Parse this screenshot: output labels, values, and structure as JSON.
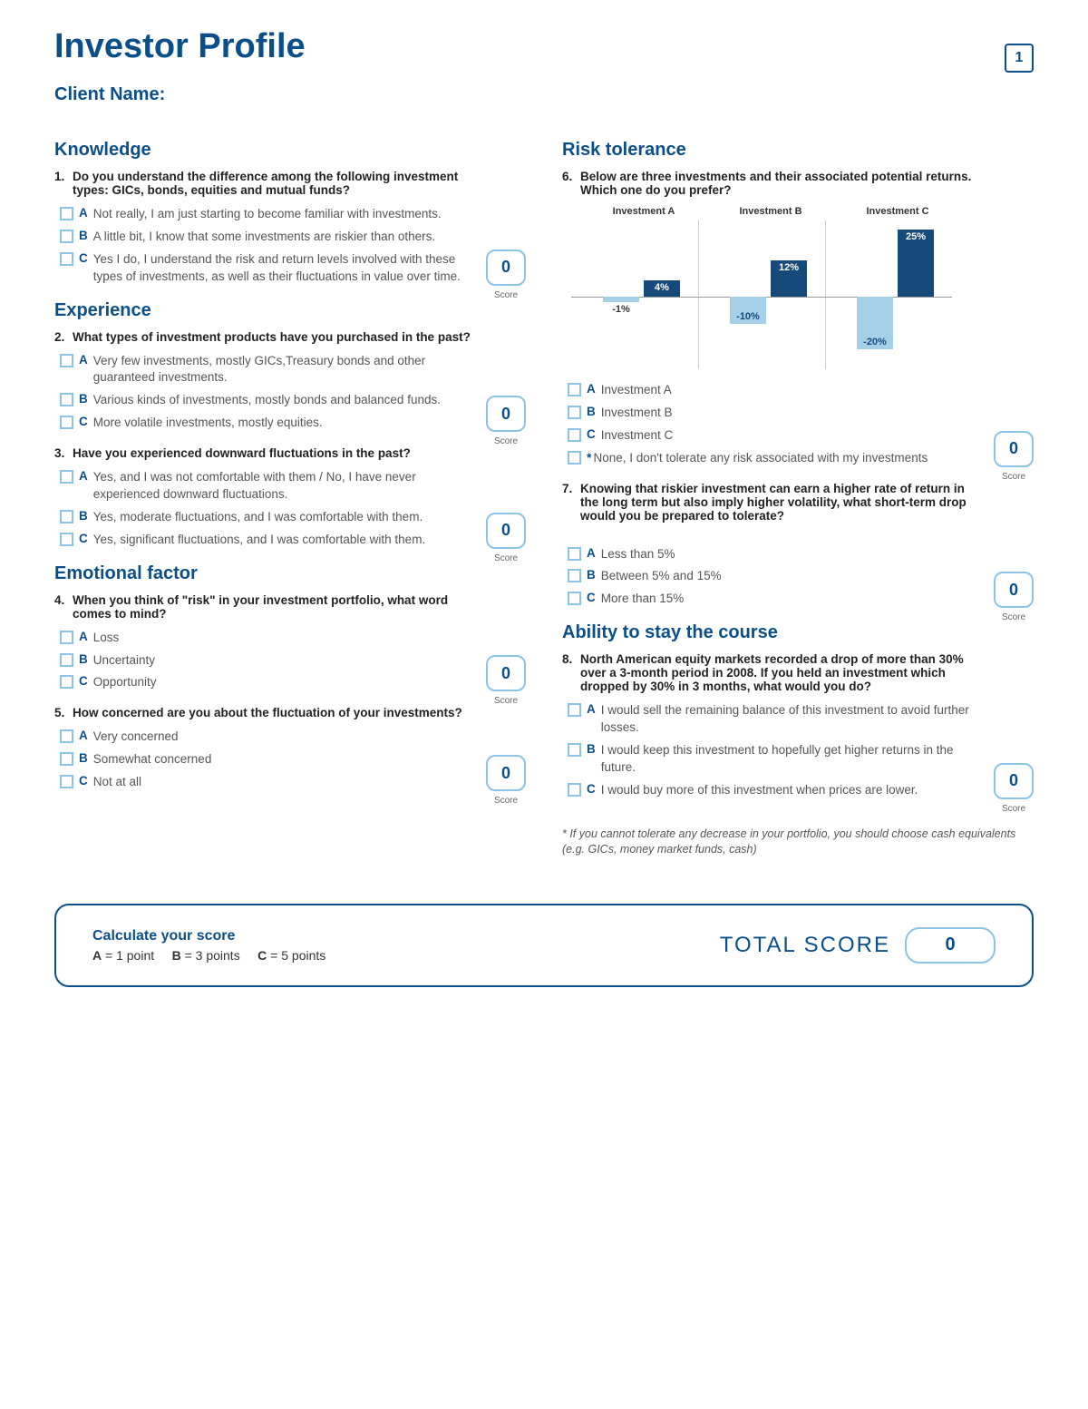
{
  "page": {
    "title": "Investor Profile",
    "clientNameLabel": "Client Name:",
    "pageNumber": "1"
  },
  "scoreLabel": "Score",
  "colors": {
    "primary": "#0b4f8a",
    "lightBlue": "#8cc3e6",
    "barDark": "#154a7b",
    "barLight": "#a6d0e8"
  },
  "sections": {
    "knowledge": {
      "title": "Knowledge"
    },
    "experience": {
      "title": "Experience"
    },
    "emotional": {
      "title": "Emotional factor"
    },
    "risk": {
      "title": "Risk tolerance"
    },
    "course": {
      "title": "Ability to stay the course"
    }
  },
  "q1": {
    "num": "1.",
    "text": "Do you understand the difference among the following investment types: GICs, bonds, equities and mutual funds?",
    "A": "Not really, I am just starting to become familiar with investments.",
    "B": "A little bit, I know that some investments are riskier than others.",
    "C": "Yes I do, I understand the risk and return levels involved with these types of investments, as well as their fluctuations in value over time.",
    "score": "0"
  },
  "q2": {
    "num": "2.",
    "text": "What types of investment products have you purchased in the past?",
    "A": "Very few investments, mostly GICs,Treasury bonds and other guaranteed investments.",
    "B": "Various kinds of investments, mostly bonds and balanced funds.",
    "C": "More volatile investments, mostly equities.",
    "score": "0"
  },
  "q3": {
    "num": "3.",
    "text": "Have you experienced downward fluctuations in the past?",
    "A": "Yes, and I was not comfortable with them / No, I have never experienced downward fluctuations.",
    "B": "Yes, moderate fluctuations, and I was comfortable with them.",
    "C": "Yes, significant fluctuations, and I was comfortable with them.",
    "score": "0"
  },
  "q4": {
    "num": "4.",
    "text": "When you think of \"risk\" in your investment portfolio, what word comes to mind?",
    "A": "Loss",
    "B": "Uncertainty",
    "C": "Opportunity",
    "score": "0"
  },
  "q5": {
    "num": "5.",
    "text": "How concerned are you about the fluctuation of your investments?",
    "A": "Very concerned",
    "B": "Somewhat concerned",
    "C": "Not at all",
    "score": "0"
  },
  "q6": {
    "num": "6.",
    "text": "Below are three investments and their associated potential returns. Which one do you prefer?",
    "A": "Investment A",
    "B": "Investment B",
    "C": "Investment C",
    "none": "None, I don't tolerate any risk associated with my investments",
    "score": "0",
    "chart": {
      "labels": {
        "a": "Investment A",
        "b": "Investment B",
        "c": "Investment C"
      },
      "columns": [
        {
          "posLabel": "4%",
          "posHeight": 18,
          "negLabel": "-1%",
          "negHeight": 6
        },
        {
          "posLabel": "12%",
          "posHeight": 40,
          "negLabel": "-10%",
          "negHeight": 30
        },
        {
          "posLabel": "25%",
          "posHeight": 74,
          "negLabel": "-20%",
          "negHeight": 58
        }
      ],
      "colLeft": [
        30,
        170,
        310
      ],
      "vlines": [
        140,
        280
      ],
      "barDark": "#154a7b",
      "barLight": "#a6d0e8"
    }
  },
  "q7": {
    "num": "7.",
    "text": "Knowing that riskier investment can earn a higher rate of return in the long term but also imply higher volatility, what short-term drop would you be prepared to tolerate?",
    "A": "Less than 5%",
    "B": "Between 5% and 15%",
    "C": "More than 15%",
    "score": "0"
  },
  "q8": {
    "num": "8.",
    "text": "North American equity markets recorded a drop of more than 30% over a 3-month period in 2008. If you held an investment which dropped by 30% in 3 months, what would you do?",
    "A": "I would sell the remaining balance of this investment to avoid further losses.",
    "B": "I would keep this investment to hopefully get higher returns in the future.",
    "C": "I would buy more of this investment when prices are lower.",
    "score": "0"
  },
  "footnote": "* If you cannot tolerate any decrease in your portfolio, you should choose cash equivalents (e.g. GICs, money market funds, cash)",
  "total": {
    "calcTitle": "Calculate your score",
    "a": "A",
    "aVal": " = 1 point",
    "b": "B",
    "bVal": " = 3 points",
    "c": "C",
    "cVal": " = 5 points",
    "label": "TOTAL SCORE",
    "value": "0"
  }
}
